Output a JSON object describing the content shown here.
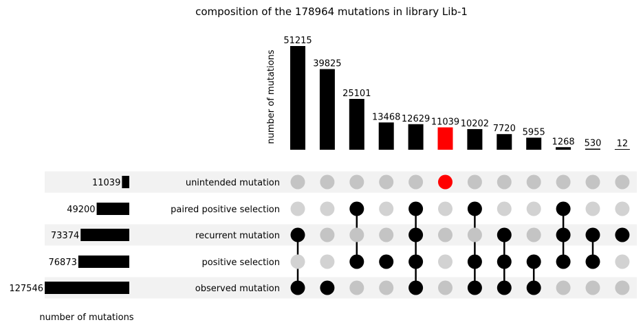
{
  "chart_data": {
    "type": "upset",
    "title": "composition of the 178964 mutations in library Lib-1",
    "intersection_axis_label": "number of mutations",
    "set_axis_label": "number of mutations",
    "sets": [
      {
        "name": "unintended mutation",
        "size": 11039
      },
      {
        "name": "paired positive selection",
        "size": 49200
      },
      {
        "name": "recurrent mutation",
        "size": 73374
      },
      {
        "name": "positive selection",
        "size": 76873
      },
      {
        "name": "observed mutation",
        "size": 127546
      }
    ],
    "intersections": [
      {
        "value": 51215,
        "members": [
          "recurrent mutation",
          "observed mutation"
        ],
        "highlight": false
      },
      {
        "value": 39825,
        "members": [
          "observed mutation"
        ],
        "highlight": false
      },
      {
        "value": 25101,
        "members": [
          "paired positive selection",
          "positive selection"
        ],
        "highlight": false
      },
      {
        "value": 13468,
        "members": [
          "positive selection"
        ],
        "highlight": false
      },
      {
        "value": 12629,
        "members": [
          "paired positive selection",
          "recurrent mutation",
          "positive selection",
          "observed mutation"
        ],
        "highlight": false
      },
      {
        "value": 11039,
        "members": [
          "unintended mutation"
        ],
        "highlight": true
      },
      {
        "value": 10202,
        "members": [
          "paired positive selection",
          "positive selection",
          "observed mutation"
        ],
        "highlight": false
      },
      {
        "value": 7720,
        "members": [
          "recurrent mutation",
          "positive selection",
          "observed mutation"
        ],
        "highlight": false
      },
      {
        "value": 5955,
        "members": [
          "positive selection",
          "observed mutation"
        ],
        "highlight": false
      },
      {
        "value": 1268,
        "members": [
          "paired positive selection",
          "recurrent mutation",
          "positive selection"
        ],
        "highlight": false
      },
      {
        "value": 530,
        "members": [
          "recurrent mutation",
          "positive selection"
        ],
        "highlight": false
      },
      {
        "value": 12,
        "members": [
          "recurrent mutation"
        ],
        "highlight": false
      }
    ],
    "colors": {
      "bar": "#000000",
      "highlight": "#ff0000",
      "dot_active": "#000000",
      "dot_inactive_even": "#c4c4c4",
      "dot_inactive_odd": "#d2d2d2",
      "row_shade": "#f2f2f2"
    }
  }
}
